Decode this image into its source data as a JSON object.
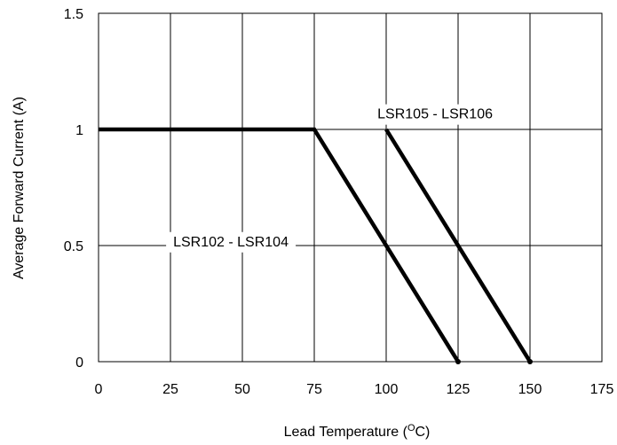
{
  "chart_data": {
    "type": "line",
    "title": "",
    "xlabel": "Lead Temperature (",
    "xlabel_unit_sup": "O",
    "xlabel_unit_tail": "C)",
    "ylabel": "Average Forward Current (A)",
    "xlim": [
      0,
      175
    ],
    "ylim": [
      0,
      1.5
    ],
    "x_ticks": [
      0,
      25,
      50,
      75,
      100,
      125,
      150,
      175
    ],
    "x_tick_labels": [
      "0",
      "25",
      "50",
      "75",
      "100",
      "125",
      "150",
      "175"
    ],
    "y_ticks": [
      0,
      0.5,
      1,
      1.5
    ],
    "y_tick_labels": [
      "0",
      "0.5",
      "1",
      "1.5"
    ],
    "grid": true,
    "series": [
      {
        "name": "LSR102 - LSR104",
        "x": [
          0,
          75,
          125
        ],
        "y": [
          1,
          1,
          0
        ]
      },
      {
        "name": "LSR105 - LSR106",
        "x": [
          100,
          150
        ],
        "y": [
          1,
          0
        ]
      }
    ],
    "annotations": [
      {
        "text": "LSR105 - LSR106",
        "x": 117,
        "y": 1.07
      },
      {
        "text": "LSR102 - LSR104",
        "x": 46,
        "y": 0.52
      }
    ]
  }
}
